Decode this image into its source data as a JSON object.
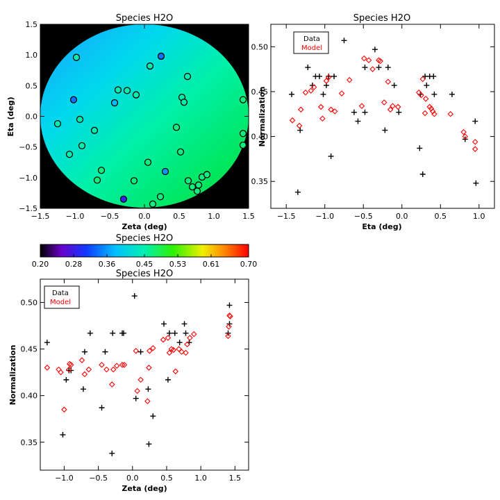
{
  "chart_data": [
    {
      "type": "scatter",
      "title": "Species H2O",
      "xlabel": "Zeta (deg)",
      "ylabel": "Eta (deg)",
      "xlim": [
        -1.5,
        1.5
      ],
      "ylim": [
        -1.5,
        1.5
      ],
      "xticks": [
        "−1.5",
        "−1.0",
        "−0.5",
        "0.0",
        "0.5",
        "1.0",
        "1.5"
      ],
      "yticks": [
        "−1.5",
        "−1.0",
        "−0.5",
        "0.0",
        "0.5",
        "1.0",
        "1.5"
      ],
      "background": "circular field colored by normalization, blue (upper-left) to green (right)",
      "points": [
        {
          "x": -1.25,
          "y": -0.12,
          "v": 0.45
        },
        {
          "x": -1.08,
          "y": -0.62,
          "v": 0.45
        },
        {
          "x": -1.02,
          "y": 0.27,
          "v": 0.34
        },
        {
          "x": -0.98,
          "y": 0.96,
          "v": 0.45
        },
        {
          "x": -0.93,
          "y": -0.05,
          "v": 0.45
        },
        {
          "x": -0.9,
          "y": -0.48,
          "v": 0.45
        },
        {
          "x": -0.72,
          "y": -0.23,
          "v": 0.45
        },
        {
          "x": -0.68,
          "y": -1.04,
          "v": 0.47
        },
        {
          "x": -0.62,
          "y": -0.88,
          "v": 0.47
        },
        {
          "x": -0.43,
          "y": 0.22,
          "v": 0.38
        },
        {
          "x": -0.38,
          "y": 0.43,
          "v": 0.45
        },
        {
          "x": -0.3,
          "y": -1.35,
          "v": 0.29
        },
        {
          "x": -0.25,
          "y": 0.42,
          "v": 0.45
        },
        {
          "x": -0.15,
          "y": -1.05,
          "v": 0.47
        },
        {
          "x": -0.12,
          "y": 0.35,
          "v": 0.45
        },
        {
          "x": 0.05,
          "y": -0.75,
          "v": 0.47
        },
        {
          "x": 0.08,
          "y": 0.82,
          "v": 0.45
        },
        {
          "x": 0.12,
          "y": -1.43,
          "v": 0.47
        },
        {
          "x": 0.24,
          "y": 0.98,
          "v": 0.34
        },
        {
          "x": 0.23,
          "y": -1.31,
          "v": 0.47
        },
        {
          "x": 0.3,
          "y": -0.9,
          "v": 0.36
        },
        {
          "x": 0.46,
          "y": -0.18,
          "v": 0.47
        },
        {
          "x": 0.52,
          "y": -0.58,
          "v": 0.47
        },
        {
          "x": 0.54,
          "y": 0.31,
          "v": 0.45
        },
        {
          "x": 0.57,
          "y": 0.23,
          "v": 0.45
        },
        {
          "x": 0.62,
          "y": 0.65,
          "v": 0.45
        },
        {
          "x": 0.63,
          "y": -1.05,
          "v": 0.47
        },
        {
          "x": 0.69,
          "y": -1.15,
          "v": 0.47
        },
        {
          "x": 0.76,
          "y": -1.22,
          "v": 0.47
        },
        {
          "x": 0.78,
          "y": -1.12,
          "v": 0.47
        },
        {
          "x": 0.83,
          "y": -0.99,
          "v": 0.47
        },
        {
          "x": 0.9,
          "y": -0.95,
          "v": 0.47
        },
        {
          "x": 1.42,
          "y": 0.27,
          "v": 0.47
        },
        {
          "x": 1.42,
          "y": -0.28,
          "v": 0.47
        },
        {
          "x": 1.42,
          "y": -0.47,
          "v": 0.47
        }
      ]
    },
    {
      "type": "colorbar",
      "title": "Species H2O",
      "range": [
        0.2,
        0.7
      ],
      "ticks": [
        "0.20",
        "0.28",
        "0.36",
        "0.45",
        "0.53",
        "0.61",
        "0.70"
      ]
    },
    {
      "type": "scatter",
      "title": "Species H2O",
      "xlabel": "Eta (deg)",
      "ylabel": "Normalization",
      "xlim": [
        -1.7,
        1.2
      ],
      "ylim": [
        0.32,
        0.525
      ],
      "xticks": [
        "−1.5",
        "−1.0",
        "−0.5",
        "0.0",
        "0.5",
        "1.0"
      ],
      "yticks": [
        "0.35",
        "0.40",
        "0.45",
        "0.50"
      ],
      "legend": [
        "Data",
        "Model"
      ],
      "legend_colors": [
        "#000000",
        "#ff0000"
      ],
      "series": [
        {
          "name": "Data",
          "marker": "plus",
          "color": "#000000",
          "points": [
            [
              -1.43,
              0.447
            ],
            [
              -1.35,
              0.338
            ],
            [
              -1.32,
              0.407
            ],
            [
              -1.22,
              0.477
            ],
            [
              -1.16,
              0.457
            ],
            [
              -1.12,
              0.467
            ],
            [
              -1.07,
              0.467
            ],
            [
              -1.02,
              0.447
            ],
            [
              -0.98,
              0.457
            ],
            [
              -0.95,
              0.467
            ],
            [
              -0.92,
              0.378
            ],
            [
              -0.88,
              0.467
            ],
            [
              -0.75,
              0.507
            ],
            [
              -0.62,
              0.427
            ],
            [
              -0.57,
              0.417
            ],
            [
              -0.48,
              0.427
            ],
            [
              -0.48,
              0.477
            ],
            [
              -0.35,
              0.497
            ],
            [
              -0.3,
              0.477
            ],
            [
              -0.22,
              0.407
            ],
            [
              -0.18,
              0.477
            ],
            [
              -0.1,
              0.457
            ],
            [
              -0.04,
              0.427
            ],
            [
              0.23,
              0.387
            ],
            [
              0.24,
              0.447
            ],
            [
              0.27,
              0.358
            ],
            [
              0.3,
              0.467
            ],
            [
              0.32,
              0.457
            ],
            [
              0.36,
              0.467
            ],
            [
              0.42,
              0.447
            ],
            [
              0.41,
              0.467
            ],
            [
              0.65,
              0.447
            ],
            [
              0.82,
              0.397
            ],
            [
              0.95,
              0.417
            ],
            [
              0.96,
              0.348
            ]
          ]
        },
        {
          "name": "Model",
          "marker": "diamond",
          "color": "#ff0000",
          "points": [
            [
              -1.42,
              0.418
            ],
            [
              -1.33,
              0.412
            ],
            [
              -1.31,
              0.43
            ],
            [
              -1.25,
              0.449
            ],
            [
              -1.18,
              0.451
            ],
            [
              -1.14,
              0.455
            ],
            [
              -1.05,
              0.433
            ],
            [
              -1.03,
              0.42
            ],
            [
              -0.98,
              0.462
            ],
            [
              -0.95,
              0.466
            ],
            [
              -0.92,
              0.43
            ],
            [
              -0.87,
              0.428
            ],
            [
              -0.78,
              0.448
            ],
            [
              -0.68,
              0.463
            ],
            [
              -0.52,
              0.434
            ],
            [
              -0.49,
              0.487
            ],
            [
              -0.43,
              0.485
            ],
            [
              -0.38,
              0.475
            ],
            [
              -0.3,
              0.485
            ],
            [
              -0.28,
              0.484
            ],
            [
              -0.23,
              0.438
            ],
            [
              -0.18,
              0.461
            ],
            [
              -0.15,
              0.43
            ],
            [
              -0.12,
              0.434
            ],
            [
              -0.05,
              0.433
            ],
            [
              0.22,
              0.449
            ],
            [
              0.25,
              0.446
            ],
            [
              0.27,
              0.464
            ],
            [
              0.3,
              0.426
            ],
            [
              0.31,
              0.442
            ],
            [
              0.36,
              0.433
            ],
            [
              0.38,
              0.431
            ],
            [
              0.4,
              0.428
            ],
            [
              0.42,
              0.425
            ],
            [
              0.63,
              0.425
            ],
            [
              0.8,
              0.405
            ],
            [
              0.82,
              0.4
            ],
            [
              0.95,
              0.394
            ],
            [
              0.95,
              0.386
            ]
          ]
        }
      ]
    },
    {
      "type": "scatter",
      "title": "Species H2O",
      "xlabel": "Zeta (deg)",
      "ylabel": "Normalization",
      "xlim": [
        -1.35,
        1.7
      ],
      "ylim": [
        0.32,
        0.525
      ],
      "xticks": [
        "−1.0",
        "−0.5",
        "0.0",
        "0.5",
        "1.0",
        "1.5"
      ],
      "yticks": [
        "0.35",
        "0.40",
        "0.45",
        "0.50"
      ],
      "legend": [
        "Data",
        "Model"
      ],
      "legend_colors": [
        "#000000",
        "#ff0000"
      ],
      "series": [
        {
          "name": "Data",
          "marker": "plus",
          "color": "#000000",
          "points": [
            [
              -1.25,
              0.457
            ],
            [
              -1.02,
              0.358
            ],
            [
              -0.97,
              0.417
            ],
            [
              -0.93,
              0.427
            ],
            [
              -0.9,
              0.427
            ],
            [
              -0.72,
              0.407
            ],
            [
              -0.7,
              0.447
            ],
            [
              -0.62,
              0.467
            ],
            [
              -0.45,
              0.387
            ],
            [
              -0.4,
              0.447
            ],
            [
              -0.3,
              0.338
            ],
            [
              -0.29,
              0.467
            ],
            [
              -0.15,
              0.467
            ],
            [
              -0.13,
              0.467
            ],
            [
              0.03,
              0.507
            ],
            [
              0.05,
              0.397
            ],
            [
              0.12,
              0.447
            ],
            [
              0.23,
              0.407
            ],
            [
              0.24,
              0.348
            ],
            [
              0.3,
              0.378
            ],
            [
              0.46,
              0.477
            ],
            [
              0.52,
              0.417
            ],
            [
              0.54,
              0.467
            ],
            [
              0.62,
              0.467
            ],
            [
              0.69,
              0.457
            ],
            [
              0.76,
              0.477
            ],
            [
              0.78,
              0.467
            ],
            [
              0.83,
              0.457
            ],
            [
              1.4,
              0.467
            ],
            [
              1.42,
              0.477
            ],
            [
              1.42,
              0.497
            ]
          ]
        },
        {
          "name": "Model",
          "marker": "diamond",
          "color": "#ff0000",
          "points": [
            [
              -1.25,
              0.43
            ],
            [
              -1.08,
              0.428
            ],
            [
              -1.05,
              0.425
            ],
            [
              -1.0,
              0.385
            ],
            [
              -0.92,
              0.434
            ],
            [
              -0.9,
              0.433
            ],
            [
              -0.93,
              0.428
            ],
            [
              -0.74,
              0.438
            ],
            [
              -0.7,
              0.423
            ],
            [
              -0.64,
              0.428
            ],
            [
              -0.45,
              0.433
            ],
            [
              -0.38,
              0.428
            ],
            [
              -0.3,
              0.412
            ],
            [
              -0.28,
              0.428
            ],
            [
              -0.23,
              0.432
            ],
            [
              -0.15,
              0.433
            ],
            [
              -0.12,
              0.433
            ],
            [
              0.05,
              0.448
            ],
            [
              0.07,
              0.405
            ],
            [
              0.12,
              0.417
            ],
            [
              0.22,
              0.394
            ],
            [
              0.24,
              0.43
            ],
            [
              0.25,
              0.448
            ],
            [
              0.3,
              0.451
            ],
            [
              0.45,
              0.46
            ],
            [
              0.52,
              0.462
            ],
            [
              0.54,
              0.446
            ],
            [
              0.57,
              0.45
            ],
            [
              0.6,
              0.449
            ],
            [
              0.63,
              0.426
            ],
            [
              0.68,
              0.45
            ],
            [
              0.72,
              0.447
            ],
            [
              0.78,
              0.446
            ],
            [
              0.8,
              0.455
            ],
            [
              0.84,
              0.462
            ],
            [
              0.9,
              0.466
            ],
            [
              1.42,
              0.486
            ],
            [
              1.43,
              0.485
            ],
            [
              1.4,
              0.464
            ],
            [
              1.41,
              0.474
            ]
          ]
        }
      ]
    }
  ]
}
